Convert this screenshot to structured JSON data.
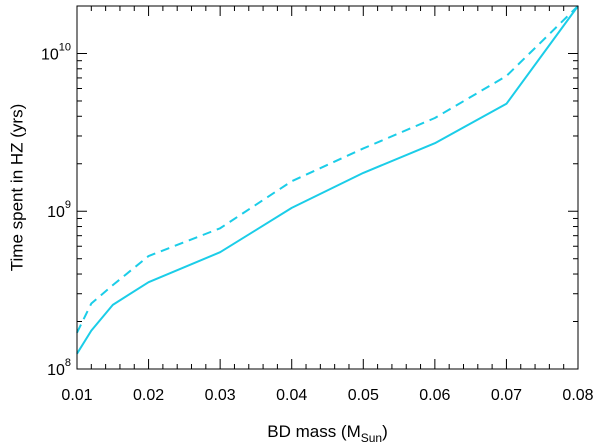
{
  "chart_data": {
    "type": "line",
    "x_label_main": "BD mass (M",
    "x_label_sub": "Sun",
    "x_label_close": ")",
    "y_label": "Time spent in HZ (yrs)",
    "xlim": [
      0.01,
      0.08
    ],
    "ylim": [
      100000000.0,
      20000000000.0
    ],
    "y_scale": "log",
    "x_ticks": [
      0.01,
      0.02,
      0.03,
      0.04,
      0.05,
      0.06,
      0.07,
      0.08
    ],
    "x_tick_labels": [
      "0.01",
      "0.02",
      "0.03",
      "0.04",
      "0.05",
      "0.06",
      "0.07",
      "0.08"
    ],
    "y_ticks": [
      {
        "value": 100000000.0,
        "base": "10",
        "exp": "8"
      },
      {
        "value": 1000000000.0,
        "base": "10",
        "exp": "9"
      },
      {
        "value": 10000000000.0,
        "base": "10",
        "exp": "10"
      }
    ],
    "line_color": "#1bcde8",
    "series": [
      {
        "style": "solid",
        "x": [
          0.01,
          0.012,
          0.015,
          0.02,
          0.03,
          0.04,
          0.05,
          0.06,
          0.07,
          0.08
        ],
        "y": [
          125000000.0,
          175000000.0,
          255000000.0,
          355000000.0,
          550000000.0,
          1050000000.0,
          1750000000.0,
          2700000000.0,
          4800000000.0,
          20000000000.0
        ]
      },
      {
        "style": "dashed",
        "x": [
          0.01,
          0.012,
          0.015,
          0.02,
          0.03,
          0.04,
          0.05,
          0.06,
          0.07,
          0.08
        ],
        "y": [
          170000000.0,
          260000000.0,
          340000000.0,
          520000000.0,
          780000000.0,
          1550000000.0,
          2500000000.0,
          3900000000.0,
          7200000000.0,
          20000000000.0
        ]
      }
    ]
  }
}
